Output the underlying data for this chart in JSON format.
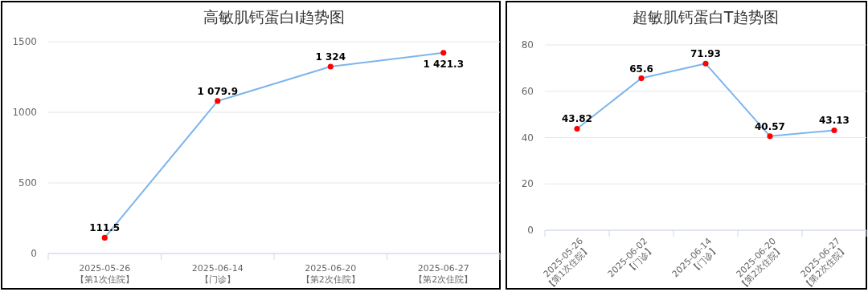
{
  "chart_data": [
    {
      "type": "line",
      "title": "高敏肌钙蛋白I趋势图",
      "categories": [
        "2025-05-26\n【第1次住院】",
        "2025-06-14\n【门诊】",
        "2025-06-20\n【第2次住院】",
        "2025-06-27\n【第2次住院】"
      ],
      "series": [
        {
          "color": "#7cb5ec",
          "values": [
            111.5,
            1079.9,
            1324,
            1421.3
          ],
          "value_labels": [
            "111.5",
            "1 079.9",
            "1 324",
            "1 421.3"
          ]
        }
      ],
      "ylim": [
        0,
        1500
      ],
      "yticks": [
        0,
        500,
        1000,
        1500
      ],
      "grid": "y",
      "marker": "circle"
    },
    {
      "type": "line",
      "title": "超敏肌钙蛋白T趋势图",
      "categories": [
        "2025-05-26\n【第1次住院】",
        "2025-06-02\n【门诊】",
        "2025-06-14\n【门诊】",
        "2025-06-20\n【第2次住院】",
        "2025-06-27\n【第2次住院】"
      ],
      "series": [
        {
          "color": "#7cb5ec",
          "values": [
            43.82,
            65.6,
            71.93,
            40.57,
            43.13
          ]
        }
      ],
      "ylim": [
        0,
        80
      ],
      "yticks": [
        0,
        20,
        40,
        60,
        80
      ],
      "grid": "y",
      "marker": "circle",
      "data_labels": true
    }
  ]
}
